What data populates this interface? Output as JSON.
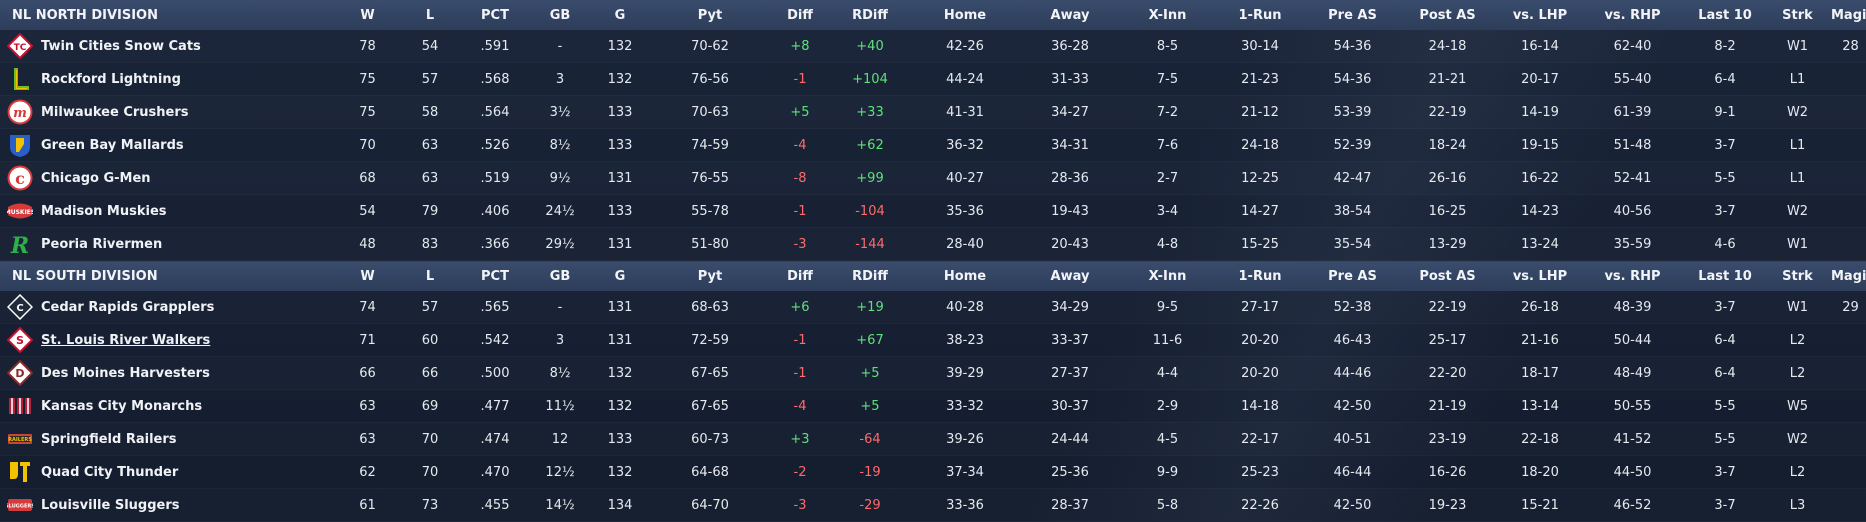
{
  "columns": {
    "w": "W",
    "l": "L",
    "pct": "PCT",
    "gb": "GB",
    "g": "G",
    "pyt": "Pyt",
    "diff": "Diff",
    "rdiff": "RDiff",
    "home": "Home",
    "away": "Away",
    "xinn": "X-Inn",
    "onerun": "1-Run",
    "preas": "Pre AS",
    "postas": "Post AS",
    "vslhp": "vs. LHP",
    "vsrhp": "vs. RHP",
    "last10": "Last 10",
    "strk": "Strk",
    "magic": "Magic#"
  },
  "divisions": [
    {
      "name": "NL NORTH DIVISION",
      "teams": [
        {
          "name": "Twin Cities Snow Cats",
          "logo": "snowcats-logo",
          "logo_color": "#c8102e",
          "w": "78",
          "l": "54",
          "pct": ".591",
          "gb": "-",
          "g": "132",
          "pyt": "70-62",
          "diff": "+8",
          "rdiff": "+40",
          "home": "42-26",
          "away": "36-28",
          "xinn": "8-5",
          "onerun": "30-14",
          "preas": "54-36",
          "postas": "24-18",
          "vslhp": "16-14",
          "vsrhp": "62-40",
          "last10": "8-2",
          "strk": "W1",
          "magic": "28"
        },
        {
          "name": "Rockford Lightning",
          "logo": "lightning-logo",
          "logo_color": "#6bbf2a",
          "w": "75",
          "l": "57",
          "pct": ".568",
          "gb": "3",
          "g": "132",
          "pyt": "76-56",
          "diff": "-1",
          "rdiff": "+104",
          "home": "44-24",
          "away": "31-33",
          "xinn": "7-5",
          "onerun": "21-23",
          "preas": "54-36",
          "postas": "21-21",
          "vslhp": "20-17",
          "vsrhp": "55-40",
          "last10": "6-4",
          "strk": "L1",
          "magic": ""
        },
        {
          "name": "Milwaukee Crushers",
          "logo": "crushers-logo",
          "logo_color": "#d63a3a",
          "w": "75",
          "l": "58",
          "pct": ".564",
          "gb": "3½",
          "g": "133",
          "pyt": "70-63",
          "diff": "+5",
          "rdiff": "+33",
          "home": "41-31",
          "away": "34-27",
          "xinn": "7-2",
          "onerun": "21-12",
          "preas": "53-39",
          "postas": "22-19",
          "vslhp": "14-19",
          "vsrhp": "61-39",
          "last10": "9-1",
          "strk": "W2",
          "magic": ""
        },
        {
          "name": "Green Bay  Mallards",
          "logo": "mallards-logo",
          "logo_color": "#2a5fc8",
          "w": "70",
          "l": "63",
          "pct": ".526",
          "gb": "8½",
          "g": "133",
          "pyt": "74-59",
          "diff": "-4",
          "rdiff": "+62",
          "home": "36-32",
          "away": "34-31",
          "xinn": "7-6",
          "onerun": "24-18",
          "preas": "52-39",
          "postas": "18-24",
          "vslhp": "19-15",
          "vsrhp": "51-48",
          "last10": "3-7",
          "strk": "L1",
          "magic": ""
        },
        {
          "name": "Chicago G-Men",
          "logo": "gmen-logo",
          "logo_color": "#d63a3a",
          "w": "68",
          "l": "63",
          "pct": ".519",
          "gb": "9½",
          "g": "131",
          "pyt": "76-55",
          "diff": "-8",
          "rdiff": "+99",
          "home": "40-27",
          "away": "28-36",
          "xinn": "2-7",
          "onerun": "12-25",
          "preas": "42-47",
          "postas": "26-16",
          "vslhp": "16-22",
          "vsrhp": "52-41",
          "last10": "5-5",
          "strk": "L1",
          "magic": ""
        },
        {
          "name": "Madison Muskies",
          "logo": "muskies-logo",
          "logo_color": "#d63a3a",
          "w": "54",
          "l": "79",
          "pct": ".406",
          "gb": "24½",
          "g": "133",
          "pyt": "55-78",
          "diff": "-1",
          "rdiff": "-104",
          "home": "35-36",
          "away": "19-43",
          "xinn": "3-4",
          "onerun": "14-27",
          "preas": "38-54",
          "postas": "16-25",
          "vslhp": "14-23",
          "vsrhp": "40-56",
          "last10": "3-7",
          "strk": "W2",
          "magic": ""
        },
        {
          "name": "Peoria Rivermen",
          "logo": "rivermen-logo",
          "logo_color": "#2db04a",
          "w": "48",
          "l": "83",
          "pct": ".366",
          "gb": "29½",
          "g": "131",
          "pyt": "51-80",
          "diff": "-3",
          "rdiff": "-144",
          "home": "28-40",
          "away": "20-43",
          "xinn": "4-8",
          "onerun": "15-25",
          "preas": "35-54",
          "postas": "13-29",
          "vslhp": "13-24",
          "vsrhp": "35-59",
          "last10": "4-6",
          "strk": "W1",
          "magic": ""
        }
      ]
    },
    {
      "name": "NL SOUTH DIVISION",
      "teams": [
        {
          "name": "Cedar Rapids Grapplers",
          "logo": "grapplers-logo",
          "logo_color": "#ffffff",
          "w": "74",
          "l": "57",
          "pct": ".565",
          "gb": "-",
          "g": "131",
          "pyt": "68-63",
          "diff": "+6",
          "rdiff": "+19",
          "home": "40-28",
          "away": "34-29",
          "xinn": "9-5",
          "onerun": "27-17",
          "preas": "52-38",
          "postas": "22-19",
          "vslhp": "26-18",
          "vsrhp": "48-39",
          "last10": "3-7",
          "strk": "W1",
          "magic": "29"
        },
        {
          "name": "St. Louis River Walkers",
          "logo": "riverwalkers-logo",
          "logo_color": "#c8102e",
          "w": "71",
          "l": "60",
          "pct": ".542",
          "gb": "3",
          "g": "131",
          "pyt": "72-59",
          "diff": "-1",
          "rdiff": "+67",
          "home": "38-23",
          "away": "33-37",
          "xinn": "11-6",
          "onerun": "20-20",
          "preas": "46-43",
          "postas": "25-17",
          "vslhp": "21-16",
          "vsrhp": "50-44",
          "last10": "6-4",
          "strk": "L2",
          "magic": ""
        },
        {
          "name": "Des Moines Harvesters",
          "logo": "harvesters-logo",
          "logo_color": "#8a2a2a",
          "w": "66",
          "l": "66",
          "pct": ".500",
          "gb": "8½",
          "g": "132",
          "pyt": "67-65",
          "diff": "-1",
          "rdiff": "+5",
          "home": "39-29",
          "away": "27-37",
          "xinn": "4-4",
          "onerun": "20-20",
          "preas": "44-46",
          "postas": "22-20",
          "vslhp": "18-17",
          "vsrhp": "48-49",
          "last10": "6-4",
          "strk": "L2",
          "magic": ""
        },
        {
          "name": "Kansas City Monarchs",
          "logo": "monarchs-logo",
          "logo_color": "#b8203a",
          "w": "63",
          "l": "69",
          "pct": ".477",
          "gb": "11½",
          "g": "132",
          "pyt": "67-65",
          "diff": "-4",
          "rdiff": "+5",
          "home": "33-32",
          "away": "30-37",
          "xinn": "2-9",
          "onerun": "14-18",
          "preas": "42-50",
          "postas": "21-19",
          "vslhp": "13-14",
          "vsrhp": "50-55",
          "last10": "5-5",
          "strk": "W5",
          "magic": ""
        },
        {
          "name": "Springfield Railers",
          "logo": "railers-logo",
          "logo_color": "#c8453a",
          "w": "63",
          "l": "70",
          "pct": ".474",
          "gb": "12",
          "g": "133",
          "pyt": "60-73",
          "diff": "+3",
          "rdiff": "-64",
          "home": "39-26",
          "away": "24-44",
          "xinn": "4-5",
          "onerun": "22-17",
          "preas": "40-51",
          "postas": "23-19",
          "vslhp": "22-18",
          "vsrhp": "41-52",
          "last10": "5-5",
          "strk": "W2",
          "magic": ""
        },
        {
          "name": "Quad City Thunder",
          "logo": "thunder-logo",
          "logo_color": "#f2c200",
          "w": "62",
          "l": "70",
          "pct": ".470",
          "gb": "12½",
          "g": "132",
          "pyt": "64-68",
          "diff": "-2",
          "rdiff": "-19",
          "home": "37-34",
          "away": "25-36",
          "xinn": "9-9",
          "onerun": "25-23",
          "preas": "46-44",
          "postas": "16-26",
          "vslhp": "18-20",
          "vsrhp": "44-50",
          "last10": "3-7",
          "strk": "L2",
          "magic": ""
        },
        {
          "name": "Louisville Sluggers",
          "logo": "sluggers-logo",
          "logo_color": "#d63a3a",
          "w": "61",
          "l": "73",
          "pct": ".455",
          "gb": "14½",
          "g": "134",
          "pyt": "64-70",
          "diff": "-3",
          "rdiff": "-29",
          "home": "33-36",
          "away": "28-37",
          "xinn": "5-8",
          "onerun": "22-26",
          "preas": "42-50",
          "postas": "19-23",
          "vslhp": "15-21",
          "vsrhp": "46-52",
          "last10": "3-7",
          "strk": "L3",
          "magic": ""
        }
      ]
    }
  ]
}
